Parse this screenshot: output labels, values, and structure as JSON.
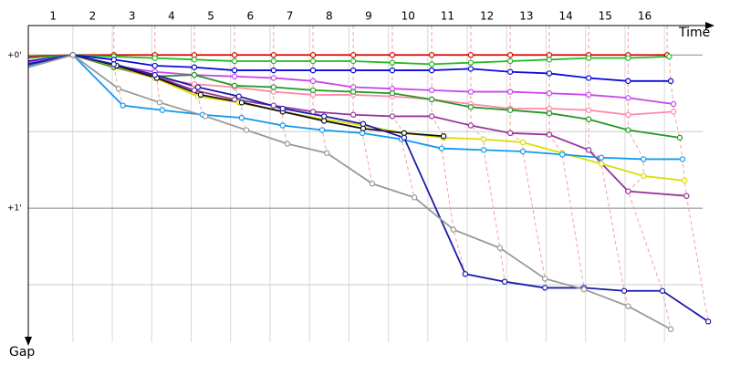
{
  "chart_data": {
    "type": "line",
    "x_label": "Time",
    "y_label": "Gap",
    "categories": [
      "1",
      "2",
      "3",
      "4",
      "5",
      "6",
      "7",
      "8",
      "9",
      "10",
      "11",
      "12",
      "13",
      "14",
      "15",
      "16"
    ],
    "xlim": [
      -0.13,
      17.2
    ],
    "xticks": [
      1,
      2,
      3,
      4,
      5,
      6,
      7,
      8,
      9,
      10,
      11,
      12,
      13,
      14,
      15,
      16
    ],
    "ylim": [
      -0.24,
      1.875
    ],
    "yticks": [
      {
        "value": 0,
        "label": "+0'"
      },
      {
        "value": 1,
        "label": "+1'"
      }
    ],
    "minor_yticks": [
      0.5,
      1.5
    ],
    "grid": true,
    "series": [
      {
        "color": "#e00000",
        "x": [
          -0.13,
          1,
          2.04,
          3.08,
          4.08,
          5.1,
          6.09,
          7.09,
          8.11,
          9.1,
          10.1,
          11.09,
          12.09,
          13.08,
          14.08,
          15.08,
          16.07
        ],
        "values": [
          0.01,
          0,
          0,
          0,
          0,
          0,
          0,
          0,
          0,
          0,
          0,
          0,
          0,
          0,
          0,
          0,
          0
        ]
      },
      {
        "color": "#22bb22",
        "x": [
          -0.13,
          1,
          2.04,
          3.08,
          4.08,
          5.1,
          6.09,
          7.09,
          8.11,
          9.1,
          10.1,
          11.09,
          12.09,
          13.08,
          14.08,
          15.08,
          16.12
        ],
        "values": [
          0.02,
          0,
          0.01,
          0.02,
          0.03,
          0.04,
          0.04,
          0.04,
          0.04,
          0.05,
          0.06,
          0.05,
          0.04,
          0.03,
          0.02,
          0.02,
          0.01
        ]
      },
      {
        "color": "#0a0adc",
        "x": [
          -0.13,
          1,
          2.04,
          3.08,
          4.08,
          5.1,
          6.09,
          7.09,
          8.11,
          9.1,
          10.1,
          11.09,
          12.09,
          13.08,
          14.08,
          15.08,
          16.16
        ],
        "values": [
          0.04,
          0,
          0.03,
          0.07,
          0.08,
          0.1,
          0.1,
          0.1,
          0.1,
          0.1,
          0.1,
          0.09,
          0.11,
          0.12,
          0.15,
          0.17,
          0.17
        ]
      },
      {
        "color": "#cc44ee",
        "x": [
          -0.13,
          1,
          2.04,
          3.08,
          4.08,
          5.1,
          6.09,
          7.09,
          8.11,
          9.1,
          10.1,
          11.09,
          12.09,
          13.08,
          14.08,
          15.08,
          16.23
        ],
        "values": [
          0.05,
          0,
          0.07,
          0.11,
          0.13,
          0.14,
          0.15,
          0.17,
          0.21,
          0.22,
          0.23,
          0.24,
          0.24,
          0.25,
          0.26,
          0.28,
          0.32
        ]
      },
      {
        "color": "#ff88aa",
        "x": [
          -0.13,
          1,
          2.04,
          3.08,
          4.08,
          5.1,
          6.09,
          7.09,
          8.11,
          9.1,
          10.1,
          11.09,
          12.09,
          13.08,
          14.08,
          15.08,
          16.23
        ],
        "values": [
          0.06,
          0,
          0.08,
          0.15,
          0.19,
          0.21,
          0.24,
          0.26,
          0.26,
          0.27,
          0.29,
          0.32,
          0.35,
          0.35,
          0.36,
          0.39,
          0.37
        ]
      },
      {
        "color": "#229922",
        "x": [
          -0.13,
          1,
          2.04,
          3.08,
          4.08,
          5.1,
          6.09,
          7.09,
          8.11,
          9.1,
          10.1,
          11.09,
          12.09,
          13.08,
          14.08,
          15.08,
          16.39
        ],
        "values": [
          0.06,
          0,
          0.08,
          0.14,
          0.13,
          0.2,
          0.21,
          0.23,
          0.24,
          0.25,
          0.29,
          0.34,
          0.36,
          0.38,
          0.42,
          0.49,
          0.54
        ]
      },
      {
        "color": "#993399",
        "x": [
          -0.13,
          1,
          2.04,
          3.08,
          4.08,
          5.1,
          6.09,
          7.09,
          8.11,
          9.1,
          10.1,
          11.09,
          12.09,
          13.08,
          14.08,
          15.08,
          16.56
        ],
        "values": [
          0.07,
          0,
          0.07,
          0.14,
          0.23,
          0.29,
          0.33,
          0.37,
          0.39,
          0.4,
          0.4,
          0.46,
          0.51,
          0.52,
          0.62,
          0.89,
          0.92
        ]
      },
      {
        "color": "#dddd00",
        "x": [
          -0.13,
          1,
          2.04,
          3.08,
          4.17,
          5.21,
          6.32,
          7.37,
          8.36,
          9.4,
          10.4,
          11.42,
          12.41,
          13.41,
          14.4,
          15.47,
          16.51
        ],
        "values": [
          0.07,
          0,
          0.07,
          0.15,
          0.27,
          0.31,
          0.37,
          0.42,
          0.46,
          0.51,
          0.54,
          0.55,
          0.57,
          0.64,
          0.71,
          0.79,
          0.82
        ]
      },
      {
        "color": "#1199ee",
        "x": [
          -0.13,
          1,
          2.27,
          3.27,
          4.29,
          5.28,
          6.32,
          7.32,
          8.34,
          9.33,
          10.35,
          11.42,
          12.41,
          13.41,
          14.4,
          15.47,
          16.46
        ],
        "values": [
          0.07,
          0,
          0.33,
          0.36,
          0.39,
          0.41,
          0.46,
          0.49,
          0.51,
          0.55,
          0.61,
          0.62,
          0.63,
          0.65,
          0.67,
          0.68,
          0.68
        ]
      },
      {
        "color": "#111111",
        "x": [
          -0.13,
          1,
          2.11,
          3.13,
          4.24,
          5.28,
          6.32,
          7.37,
          8.36,
          9.4,
          10.4
        ],
        "values": [
          0.06,
          0,
          0.07,
          0.15,
          0.26,
          0.31,
          0.37,
          0.43,
          0.48,
          0.51,
          0.53
        ]
      },
      {
        "color": "#1a1aaa",
        "x": [
          -0.13,
          1,
          2.04,
          3.08,
          4.17,
          5.21,
          6.32,
          7.37,
          8.36,
          9.4,
          10.95,
          11.95,
          12.97,
          13.96,
          14.98,
          15.95,
          17.11
        ],
        "values": [
          0.06,
          0,
          0.06,
          0.13,
          0.21,
          0.27,
          0.35,
          0.4,
          0.45,
          0.54,
          1.43,
          1.48,
          1.52,
          1.52,
          1.54,
          1.54,
          1.74
        ]
      },
      {
        "color": "#999999",
        "x": [
          -0.13,
          1,
          2.16,
          3.2,
          4.36,
          5.4,
          6.44,
          7.44,
          8.59,
          9.66,
          10.65,
          11.83,
          12.97,
          13.96,
          15.08,
          16.16
        ],
        "values": [
          0.08,
          0,
          0.22,
          0.31,
          0.4,
          0.49,
          0.58,
          0.64,
          0.84,
          0.93,
          1.14,
          1.26,
          1.46,
          1.53,
          1.64,
          1.79
        ]
      }
    ]
  }
}
